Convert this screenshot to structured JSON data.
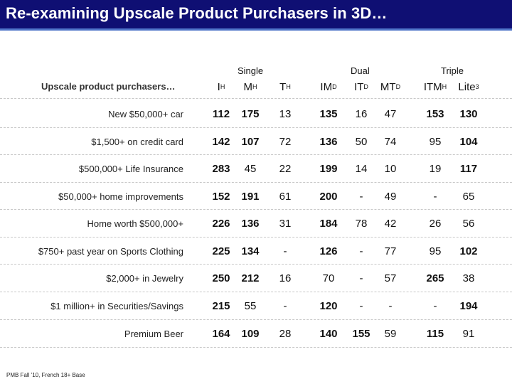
{
  "title": "Re-examining Upscale Product Purchasers in 3D…",
  "groups": {
    "single": "Single",
    "dual": "Dual",
    "triple": "Triple"
  },
  "table": {
    "row_header": "Upscale product purchasers…",
    "columns": [
      {
        "base": "I",
        "sup": "H"
      },
      {
        "base": "M",
        "sup": "H"
      },
      {
        "base": "T",
        "sup": "H"
      },
      {
        "base": "IM",
        "sup": "D"
      },
      {
        "base": "IT",
        "sup": "D"
      },
      {
        "base": "MT",
        "sup": "D"
      },
      {
        "base": "ITM",
        "sup": "H"
      },
      {
        "base": "Lite",
        "sup": "3"
      }
    ],
    "rows": [
      {
        "label": "New $50,000+ car",
        "values": [
          "112",
          "175",
          "13",
          "135",
          "16",
          "47",
          "153",
          "130"
        ],
        "bold": [
          true,
          true,
          false,
          true,
          false,
          false,
          true,
          true
        ]
      },
      {
        "label": "$1,500+ on credit card",
        "values": [
          "142",
          "107",
          "72",
          "136",
          "50",
          "74",
          "95",
          "104"
        ],
        "bold": [
          true,
          true,
          false,
          true,
          false,
          false,
          false,
          true
        ]
      },
      {
        "label": "$500,000+  Life Insurance",
        "values": [
          "283",
          "45",
          "22",
          "199",
          "14",
          "10",
          "19",
          "117"
        ],
        "bold": [
          true,
          false,
          false,
          true,
          false,
          false,
          false,
          true
        ]
      },
      {
        "label": "$50,000+ home improvements",
        "values": [
          "152",
          "191",
          "61",
          "200",
          "-",
          "49",
          "-",
          "65"
        ],
        "bold": [
          true,
          true,
          false,
          true,
          false,
          false,
          false,
          false
        ]
      },
      {
        "label": "Home worth $500,000+",
        "values": [
          "226",
          "136",
          "31",
          "184",
          "78",
          "42",
          "26",
          "56"
        ],
        "bold": [
          true,
          true,
          false,
          true,
          false,
          false,
          false,
          false
        ]
      },
      {
        "label": "$750+ past year on Sports Clothing",
        "values": [
          "225",
          "134",
          "-",
          "126",
          "-",
          "77",
          "95",
          "102"
        ],
        "bold": [
          true,
          true,
          false,
          true,
          false,
          false,
          false,
          true
        ]
      },
      {
        "label": "$2,000+ in Jewelry",
        "values": [
          "250",
          "212",
          "16",
          "70",
          "-",
          "57",
          "265",
          "38"
        ],
        "bold": [
          true,
          true,
          false,
          false,
          false,
          false,
          true,
          false
        ]
      },
      {
        "label": "$1 million+ in Securities/Savings",
        "values": [
          "215",
          "55",
          "-",
          "120",
          "-",
          "-",
          "-",
          "194"
        ],
        "bold": [
          true,
          false,
          false,
          true,
          false,
          false,
          false,
          true
        ]
      },
      {
        "label": "Premium Beer",
        "values": [
          "164",
          "109",
          "28",
          "140",
          "155",
          "59",
          "115",
          "91"
        ],
        "bold": [
          true,
          true,
          false,
          true,
          true,
          false,
          true,
          false
        ]
      }
    ]
  },
  "footnote": "PMB Fall '10, French 18+ Base",
  "colors": {
    "title_bg": "#0f0f73",
    "title_accent": "#4f74c8",
    "title_text": "#ffffff"
  }
}
